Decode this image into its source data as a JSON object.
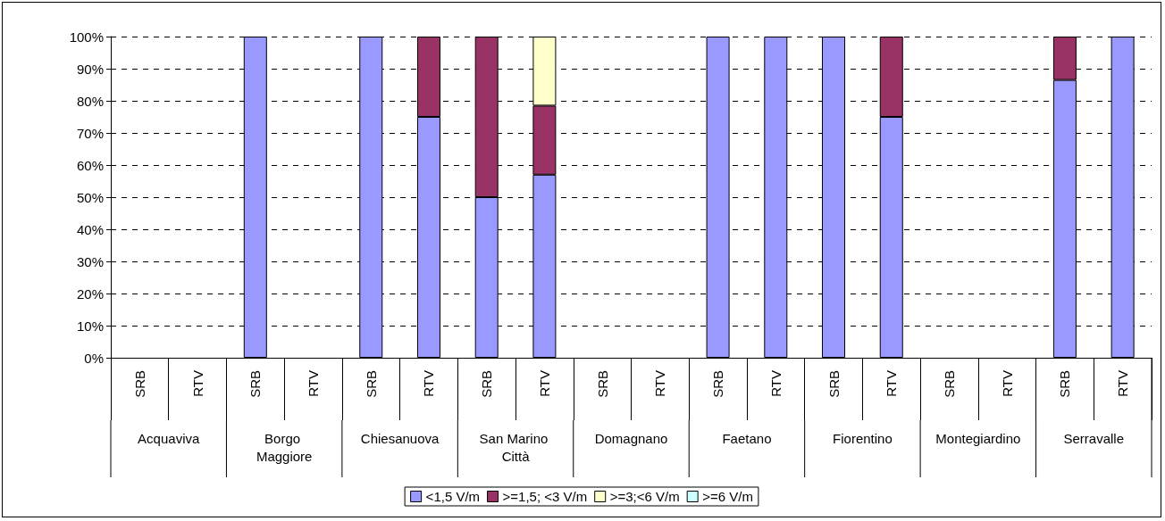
{
  "chart_data": {
    "type": "bar",
    "stacked": true,
    "categories": [
      "SRB",
      "RTV",
      "SRB",
      "RTV",
      "SRB",
      "RTV",
      "SRB",
      "RTV",
      "SRB",
      "RTV",
      "SRB",
      "RTV",
      "SRB",
      "RTV",
      "SRB",
      "RTV",
      "SRB",
      "RTV"
    ],
    "series": [
      {
        "name": "<1,5 V/m",
        "color": "#9999ff",
        "values": [
          0,
          0,
          100,
          0,
          100,
          75,
          50,
          57,
          0,
          0,
          100,
          100,
          100,
          75,
          0,
          0,
          86.5,
          100
        ]
      },
      {
        "name": ">=1,5; <3 V/m",
        "color": "#993366",
        "values": [
          0,
          0,
          0,
          0,
          0,
          25,
          50,
          21.5,
          0,
          0,
          0,
          0,
          0,
          25,
          0,
          0,
          13.5,
          0
        ]
      },
      {
        "name": ">=3;<6 V/m",
        "color": "#ffffcc",
        "values": [
          0,
          0,
          0,
          0,
          0,
          0,
          0,
          21.5,
          0,
          0,
          0,
          0,
          0,
          0,
          0,
          0,
          0,
          0
        ]
      },
      {
        "name": ">=6 V/m",
        "color": "#ccffff",
        "values": [
          0,
          0,
          0,
          0,
          0,
          0,
          0,
          0,
          0,
          0,
          0,
          0,
          0,
          0,
          0,
          0,
          0,
          0
        ]
      }
    ],
    "annotations": [
      "Acquaviva",
      "Borgo Maggiore",
      "Chiesanuova",
      "San Marino Città",
      "Domagnano",
      "Faetano",
      "Fiorentino",
      "Montegiardino",
      "Serravalle"
    ],
    "ylim": [
      0,
      100
    ],
    "yticks": [
      {
        "value": 0,
        "label": "0%"
      },
      {
        "value": 10,
        "label": "10%"
      },
      {
        "value": 20,
        "label": "20%"
      },
      {
        "value": 30,
        "label": "30%"
      },
      {
        "value": 40,
        "label": "40%"
      },
      {
        "value": 50,
        "label": "50%"
      },
      {
        "value": 60,
        "label": "60%"
      },
      {
        "value": 70,
        "label": "70%"
      },
      {
        "value": 80,
        "label": "80%"
      },
      {
        "value": 90,
        "label": "90%"
      },
      {
        "value": 100,
        "label": "100%"
      }
    ],
    "grid": "y",
    "legend": "bottom"
  }
}
